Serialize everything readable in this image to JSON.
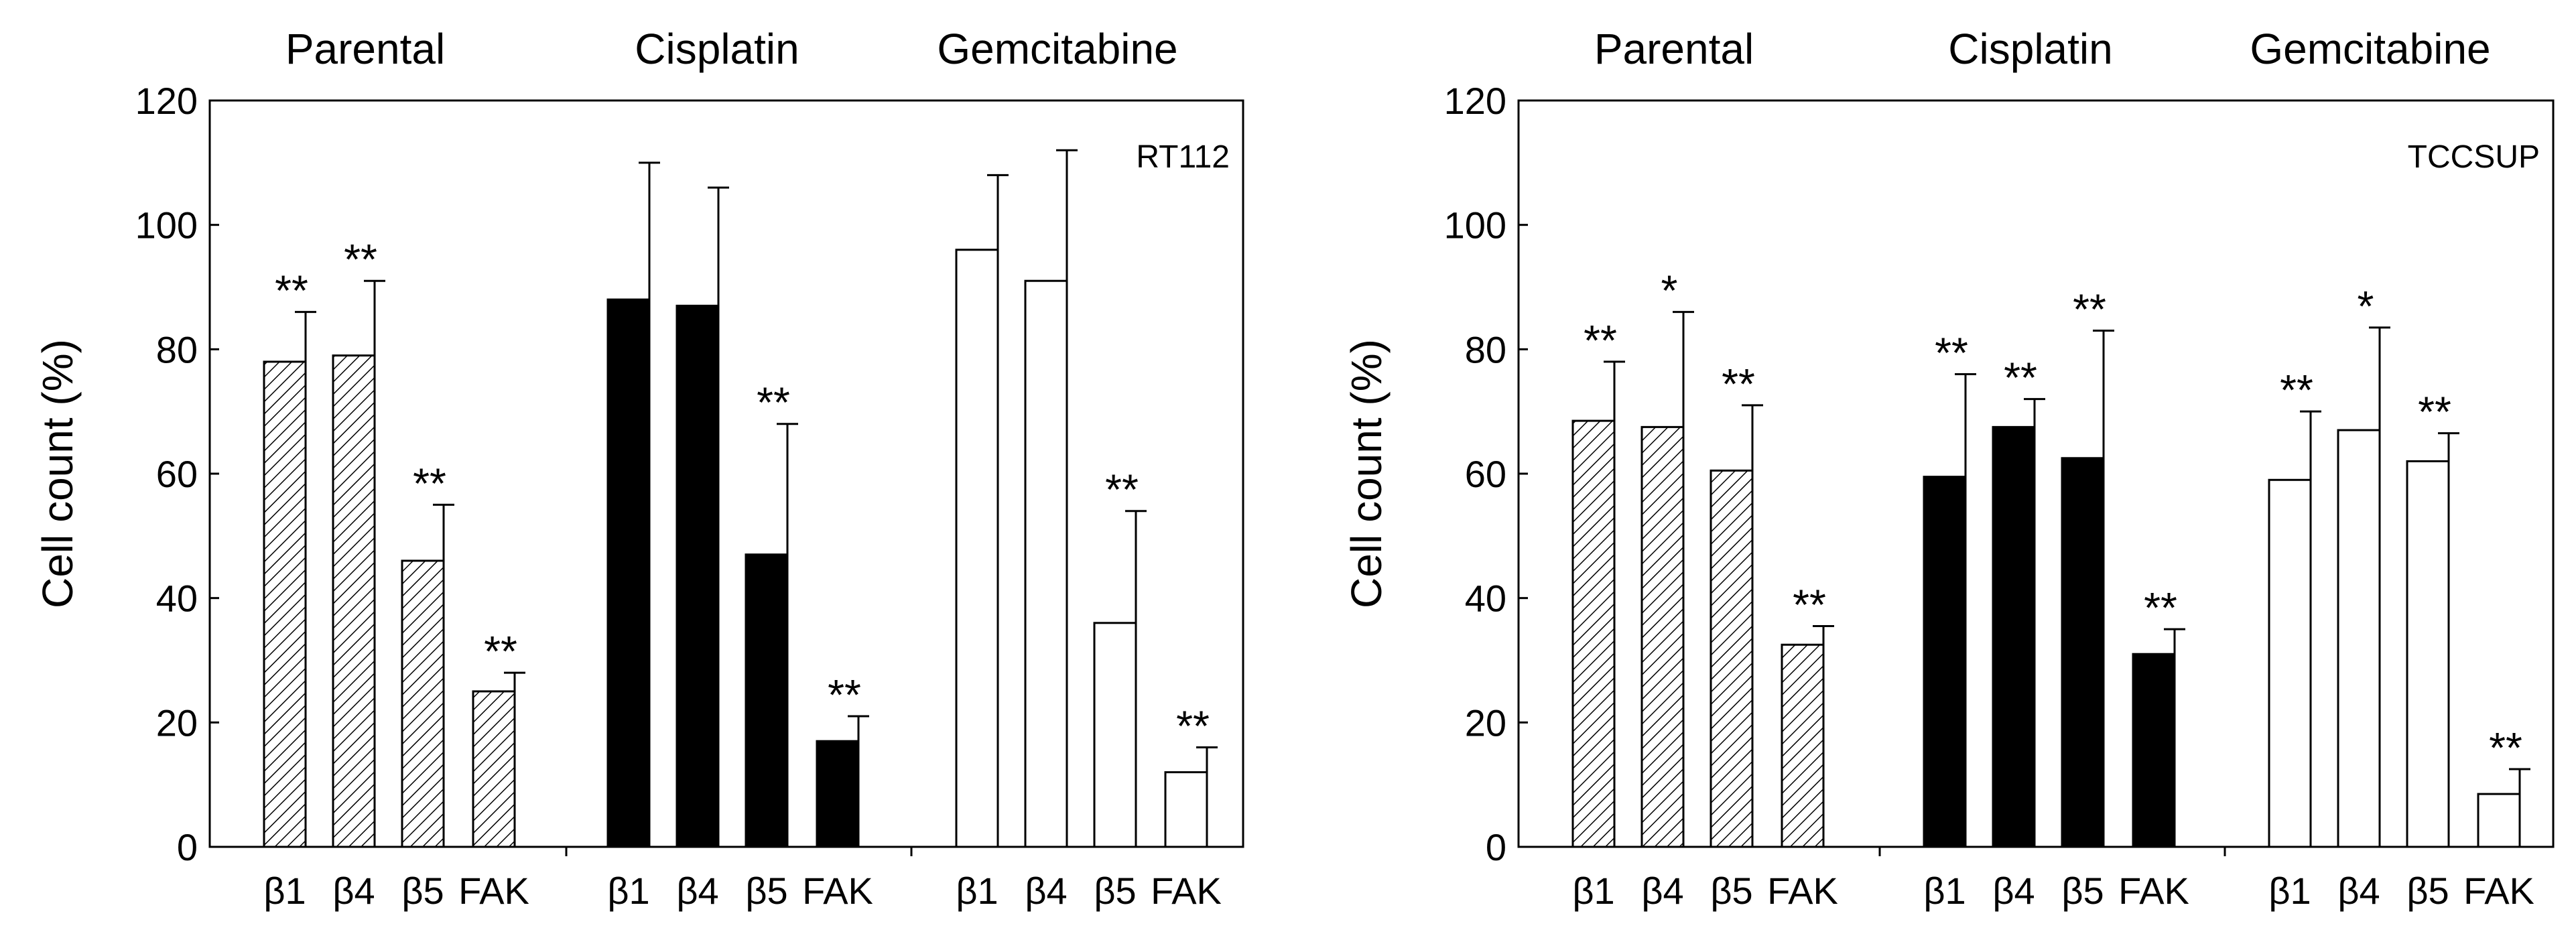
{
  "chart_data": [
    {
      "type": "bar",
      "panel_label": "RT112",
      "ylabel": "Cell count (%)",
      "ylim": [
        0,
        120
      ],
      "yticks": [
        0,
        20,
        40,
        60,
        80,
        100,
        120
      ],
      "groups": [
        "Parental",
        "Cisplatin",
        "Gemcitabine"
      ],
      "categories": [
        "β1",
        "β4",
        "β5",
        "FAK"
      ],
      "series": [
        {
          "name": "Parental",
          "fill": "hatched",
          "values": [
            78,
            79,
            46,
            25
          ],
          "errors": [
            8,
            12,
            9,
            3
          ],
          "significance": [
            "**",
            "**",
            "**",
            "**"
          ]
        },
        {
          "name": "Cisplatin",
          "fill": "black",
          "values": [
            88,
            87,
            47,
            17
          ],
          "errors": [
            22,
            19,
            21,
            4
          ],
          "significance": [
            "",
            "",
            "**",
            "**"
          ]
        },
        {
          "name": "Gemcitabine",
          "fill": "white",
          "values": [
            96,
            91,
            36,
            12
          ],
          "errors": [
            12,
            21,
            18,
            4
          ],
          "significance": [
            "",
            "",
            "**",
            "**"
          ]
        }
      ]
    },
    {
      "type": "bar",
      "panel_label": "TCCSUP",
      "ylabel": "Cell count (%)",
      "ylim": [
        0,
        120
      ],
      "yticks": [
        0,
        20,
        40,
        60,
        80,
        100,
        120
      ],
      "groups": [
        "Parental",
        "Cisplatin",
        "Gemcitabine"
      ],
      "categories": [
        "β1",
        "β4",
        "β5",
        "FAK"
      ],
      "series": [
        {
          "name": "Parental",
          "fill": "hatched",
          "values": [
            68.5,
            67.5,
            60.5,
            32.5
          ],
          "errors": [
            9.5,
            18.5,
            10.5,
            3
          ],
          "significance": [
            "**",
            "*",
            "**",
            "**"
          ]
        },
        {
          "name": "Cisplatin",
          "fill": "black",
          "values": [
            59.5,
            67.5,
            62.5,
            31
          ],
          "errors": [
            16.5,
            4.5,
            20.5,
            4
          ],
          "significance": [
            "**",
            "**",
            "**",
            "**"
          ]
        },
        {
          "name": "Gemcitabine",
          "fill": "white",
          "values": [
            59,
            67,
            62,
            8.5
          ],
          "errors": [
            11,
            16.5,
            4.5,
            4
          ],
          "significance": [
            "**",
            "*",
            "**",
            "**"
          ]
        }
      ]
    }
  ]
}
